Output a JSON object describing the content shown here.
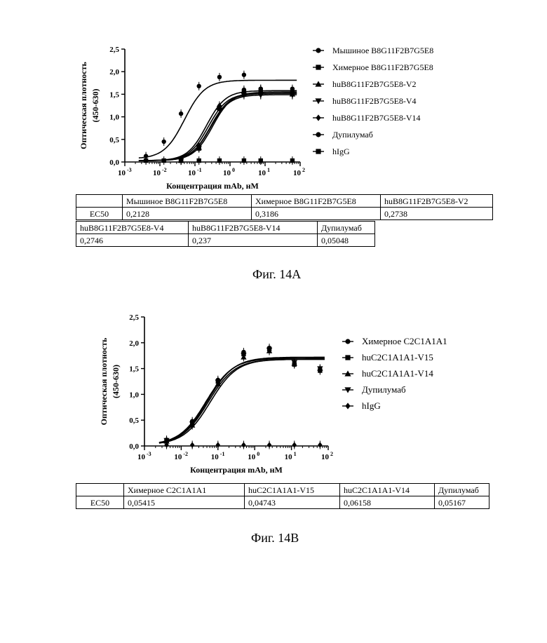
{
  "chart_data": [
    {
      "type": "scatter",
      "title": "",
      "xlabel": "Концентрация  mAb, нМ",
      "ylabel": "Оптическая плотность (450-630)",
      "ylabel_lines": [
        "Оптическая плотность",
        "(450-630)"
      ],
      "x_scale": "log",
      "xlim": [
        0.001,
        100
      ],
      "ylim": [
        0,
        2.5
      ],
      "x_ticks": [
        {
          "value": 0.001,
          "base": "10",
          "exp": "-3"
        },
        {
          "value": 0.01,
          "base": "10",
          "exp": "-2"
        },
        {
          "value": 0.1,
          "base": "10",
          "exp": "-1"
        },
        {
          "value": 1,
          "base": "10",
          "exp": "0"
        },
        {
          "value": 10,
          "base": "10",
          "exp": "1"
        },
        {
          "value": 100,
          "base": "10",
          "exp": "2"
        }
      ],
      "y_ticks": [
        {
          "value": 0,
          "label": "0,0"
        },
        {
          "value": 0.5,
          "label": "0,5"
        },
        {
          "value": 1.0,
          "label": "1,0"
        },
        {
          "value": 1.5,
          "label": "1,5"
        },
        {
          "value": 2.0,
          "label": "2,0"
        },
        {
          "value": 2.5,
          "label": "2,5"
        }
      ],
      "legend_position": "right",
      "series": [
        {
          "name": "Мышиное B8G11F2B7G5E8",
          "marker": "circle",
          "x": [
            0.04,
            0.13,
            0.5,
            2.5,
            7.5,
            60
          ],
          "y": [
            0.04,
            0.35,
            1.22,
            1.6,
            1.62,
            1.58
          ],
          "fit": {
            "bottom": 0.03,
            "top": 1.58,
            "ec50": 0.2128,
            "hill": 1.6
          }
        },
        {
          "name": "Химерное B8G11F2B7G5E8",
          "marker": "square",
          "x": [
            0.04,
            0.13,
            0.5,
            2.5,
            7.5,
            60
          ],
          "y": [
            0.03,
            0.3,
            1.18,
            1.55,
            1.55,
            1.52
          ],
          "fit": {
            "bottom": 0.03,
            "top": 1.55,
            "ec50": 0.3186,
            "hill": 1.6
          }
        },
        {
          "name": "huB8G11F2B7G5E8-V2",
          "marker": "triangle-up",
          "x": [
            0.04,
            0.13,
            0.5,
            2.5,
            7.5,
            60
          ],
          "y": [
            0.03,
            0.32,
            1.2,
            1.5,
            1.52,
            1.5
          ],
          "fit": {
            "bottom": 0.03,
            "top": 1.52,
            "ec50": 0.2738,
            "hill": 1.6
          }
        },
        {
          "name": "huB8G11F2B7G5E8-V4",
          "marker": "triangle-down",
          "x": [
            0.04,
            0.13,
            0.5,
            2.5,
            7.5,
            60
          ],
          "y": [
            0.03,
            0.31,
            1.19,
            1.48,
            1.48,
            1.48
          ],
          "fit": {
            "bottom": 0.03,
            "top": 1.49,
            "ec50": 0.2746,
            "hill": 1.6
          }
        },
        {
          "name": "huB8G11F2B7G5E8-V14",
          "marker": "diamond",
          "x": [
            0.04,
            0.13,
            0.5,
            2.5,
            7.5,
            60
          ],
          "y": [
            0.03,
            0.34,
            1.25,
            1.52,
            1.5,
            1.5
          ],
          "fit": {
            "bottom": 0.03,
            "top": 1.52,
            "ec50": 0.237,
            "hill": 1.6
          }
        },
        {
          "name": "Дупилумаб",
          "marker": "circle",
          "x": [
            0.004,
            0.013,
            0.04,
            0.13,
            0.5,
            2.5,
            7.5,
            60
          ],
          "y": [
            0.13,
            0.45,
            1.07,
            1.68,
            1.88,
            1.93,
            1.62,
            1.62
          ],
          "fit": {
            "bottom": 0.07,
            "top": 1.81,
            "ec50": 0.05048,
            "hill": 1.5
          }
        },
        {
          "name": "hIgG",
          "marker": "square",
          "x": [
            0.004,
            0.013,
            0.04,
            0.13,
            0.5,
            2.5,
            7.5,
            60
          ],
          "y": [
            0.03,
            0.03,
            0.03,
            0.03,
            0.03,
            0.03,
            0.03,
            0.03
          ]
        }
      ]
    },
    {
      "type": "scatter",
      "title": "",
      "xlabel": "Концентрация mAb, нМ",
      "ylabel": "Оптическая плотность (450-630)",
      "ylabel_lines": [
        "Оптическая плотность",
        "(450-630)"
      ],
      "x_scale": "log",
      "xlim": [
        0.001,
        100
      ],
      "ylim": [
        0,
        2.5
      ],
      "x_ticks": [
        {
          "value": 0.001,
          "base": "10",
          "exp": "-3"
        },
        {
          "value": 0.01,
          "base": "10",
          "exp": "-2"
        },
        {
          "value": 0.1,
          "base": "10",
          "exp": "-1"
        },
        {
          "value": 1,
          "base": "10",
          "exp": "0"
        },
        {
          "value": 10,
          "base": "10",
          "exp": "1"
        },
        {
          "value": 100,
          "base": "10",
          "exp": "2"
        }
      ],
      "y_ticks": [
        {
          "value": 0,
          "label": "0,0"
        },
        {
          "value": 0.5,
          "label": "0,5"
        },
        {
          "value": 1.0,
          "label": "1,0"
        },
        {
          "value": 1.5,
          "label": "1,5"
        },
        {
          "value": 2.0,
          "label": "2,0"
        },
        {
          "value": 2.5,
          "label": "2,5"
        }
      ],
      "legend_position": "right",
      "series": [
        {
          "name": "Химерное C2C1A1A1",
          "marker": "circle",
          "x": [
            0.004,
            0.02,
            0.1,
            0.5,
            2.5,
            12,
            60
          ],
          "y": [
            0.12,
            0.48,
            1.28,
            1.82,
            1.9,
            1.6,
            1.48
          ],
          "fit": {
            "bottom": 0.02,
            "top": 1.68,
            "ec50": 0.05415,
            "hill": 1.2
          }
        },
        {
          "name": "huC2C1A1A1-V15",
          "marker": "square",
          "x": [
            0.004,
            0.02,
            0.1,
            0.5,
            2.5,
            12,
            60
          ],
          "y": [
            0.1,
            0.45,
            1.25,
            1.78,
            1.88,
            1.58,
            1.46
          ],
          "fit": {
            "bottom": 0.02,
            "top": 1.7,
            "ec50": 0.04743,
            "hill": 1.2
          }
        },
        {
          "name": "huC2C1A1A1-V14",
          "marker": "triangle-up",
          "x": [
            0.004,
            0.02,
            0.1,
            0.5,
            2.5,
            12,
            60
          ],
          "y": [
            0.09,
            0.4,
            1.2,
            1.72,
            1.84,
            1.6,
            1.5
          ],
          "fit": {
            "bottom": 0.02,
            "top": 1.68,
            "ec50": 0.06158,
            "hill": 1.2
          }
        },
        {
          "name": "Дупилумаб",
          "marker": "triangle-down",
          "x": [
            0.004,
            0.02,
            0.1,
            0.5,
            2.5,
            12,
            60
          ],
          "y": [
            0.11,
            0.43,
            1.24,
            1.76,
            1.86,
            1.62,
            1.5
          ],
          "fit": {
            "bottom": 0.02,
            "top": 1.72,
            "ec50": 0.05167,
            "hill": 1.2
          }
        },
        {
          "name": "hIgG",
          "marker": "diamond",
          "x": [
            0.004,
            0.02,
            0.1,
            0.5,
            2.5,
            12,
            60
          ],
          "y": [
            0.02,
            0.02,
            0.02,
            0.02,
            0.02,
            0.02,
            0.02
          ]
        }
      ]
    }
  ],
  "table_a": {
    "row1_headers": [
      "Мышиное B8G11F2B7G5E8",
      "Химерное B8G11F2B7G5E8",
      "huB8G11F2B7G5E8-V2"
    ],
    "row1_label": "EC50",
    "row1_values": [
      "0,2128",
      "0,3186",
      "0,2738"
    ],
    "row2_headers": [
      "huB8G11F2B7G5E8-V4",
      "huB8G11F2B7G5E8-V14",
      "Дупилумаб"
    ],
    "row2_values": [
      "0,2746",
      "0,237",
      "0,05048"
    ]
  },
  "table_b": {
    "headers": [
      "Химерное C2C1A1A1",
      "huC2C1A1A1-V15",
      "huC2C1A1A1-V14",
      "Дупилумаб"
    ],
    "row_label": "EC50",
    "values": [
      "0,05415",
      "0,04743",
      "0,06158",
      "0,05167"
    ]
  },
  "captions": {
    "a": "Фиг. 14А",
    "b": "Фиг. 14В"
  }
}
